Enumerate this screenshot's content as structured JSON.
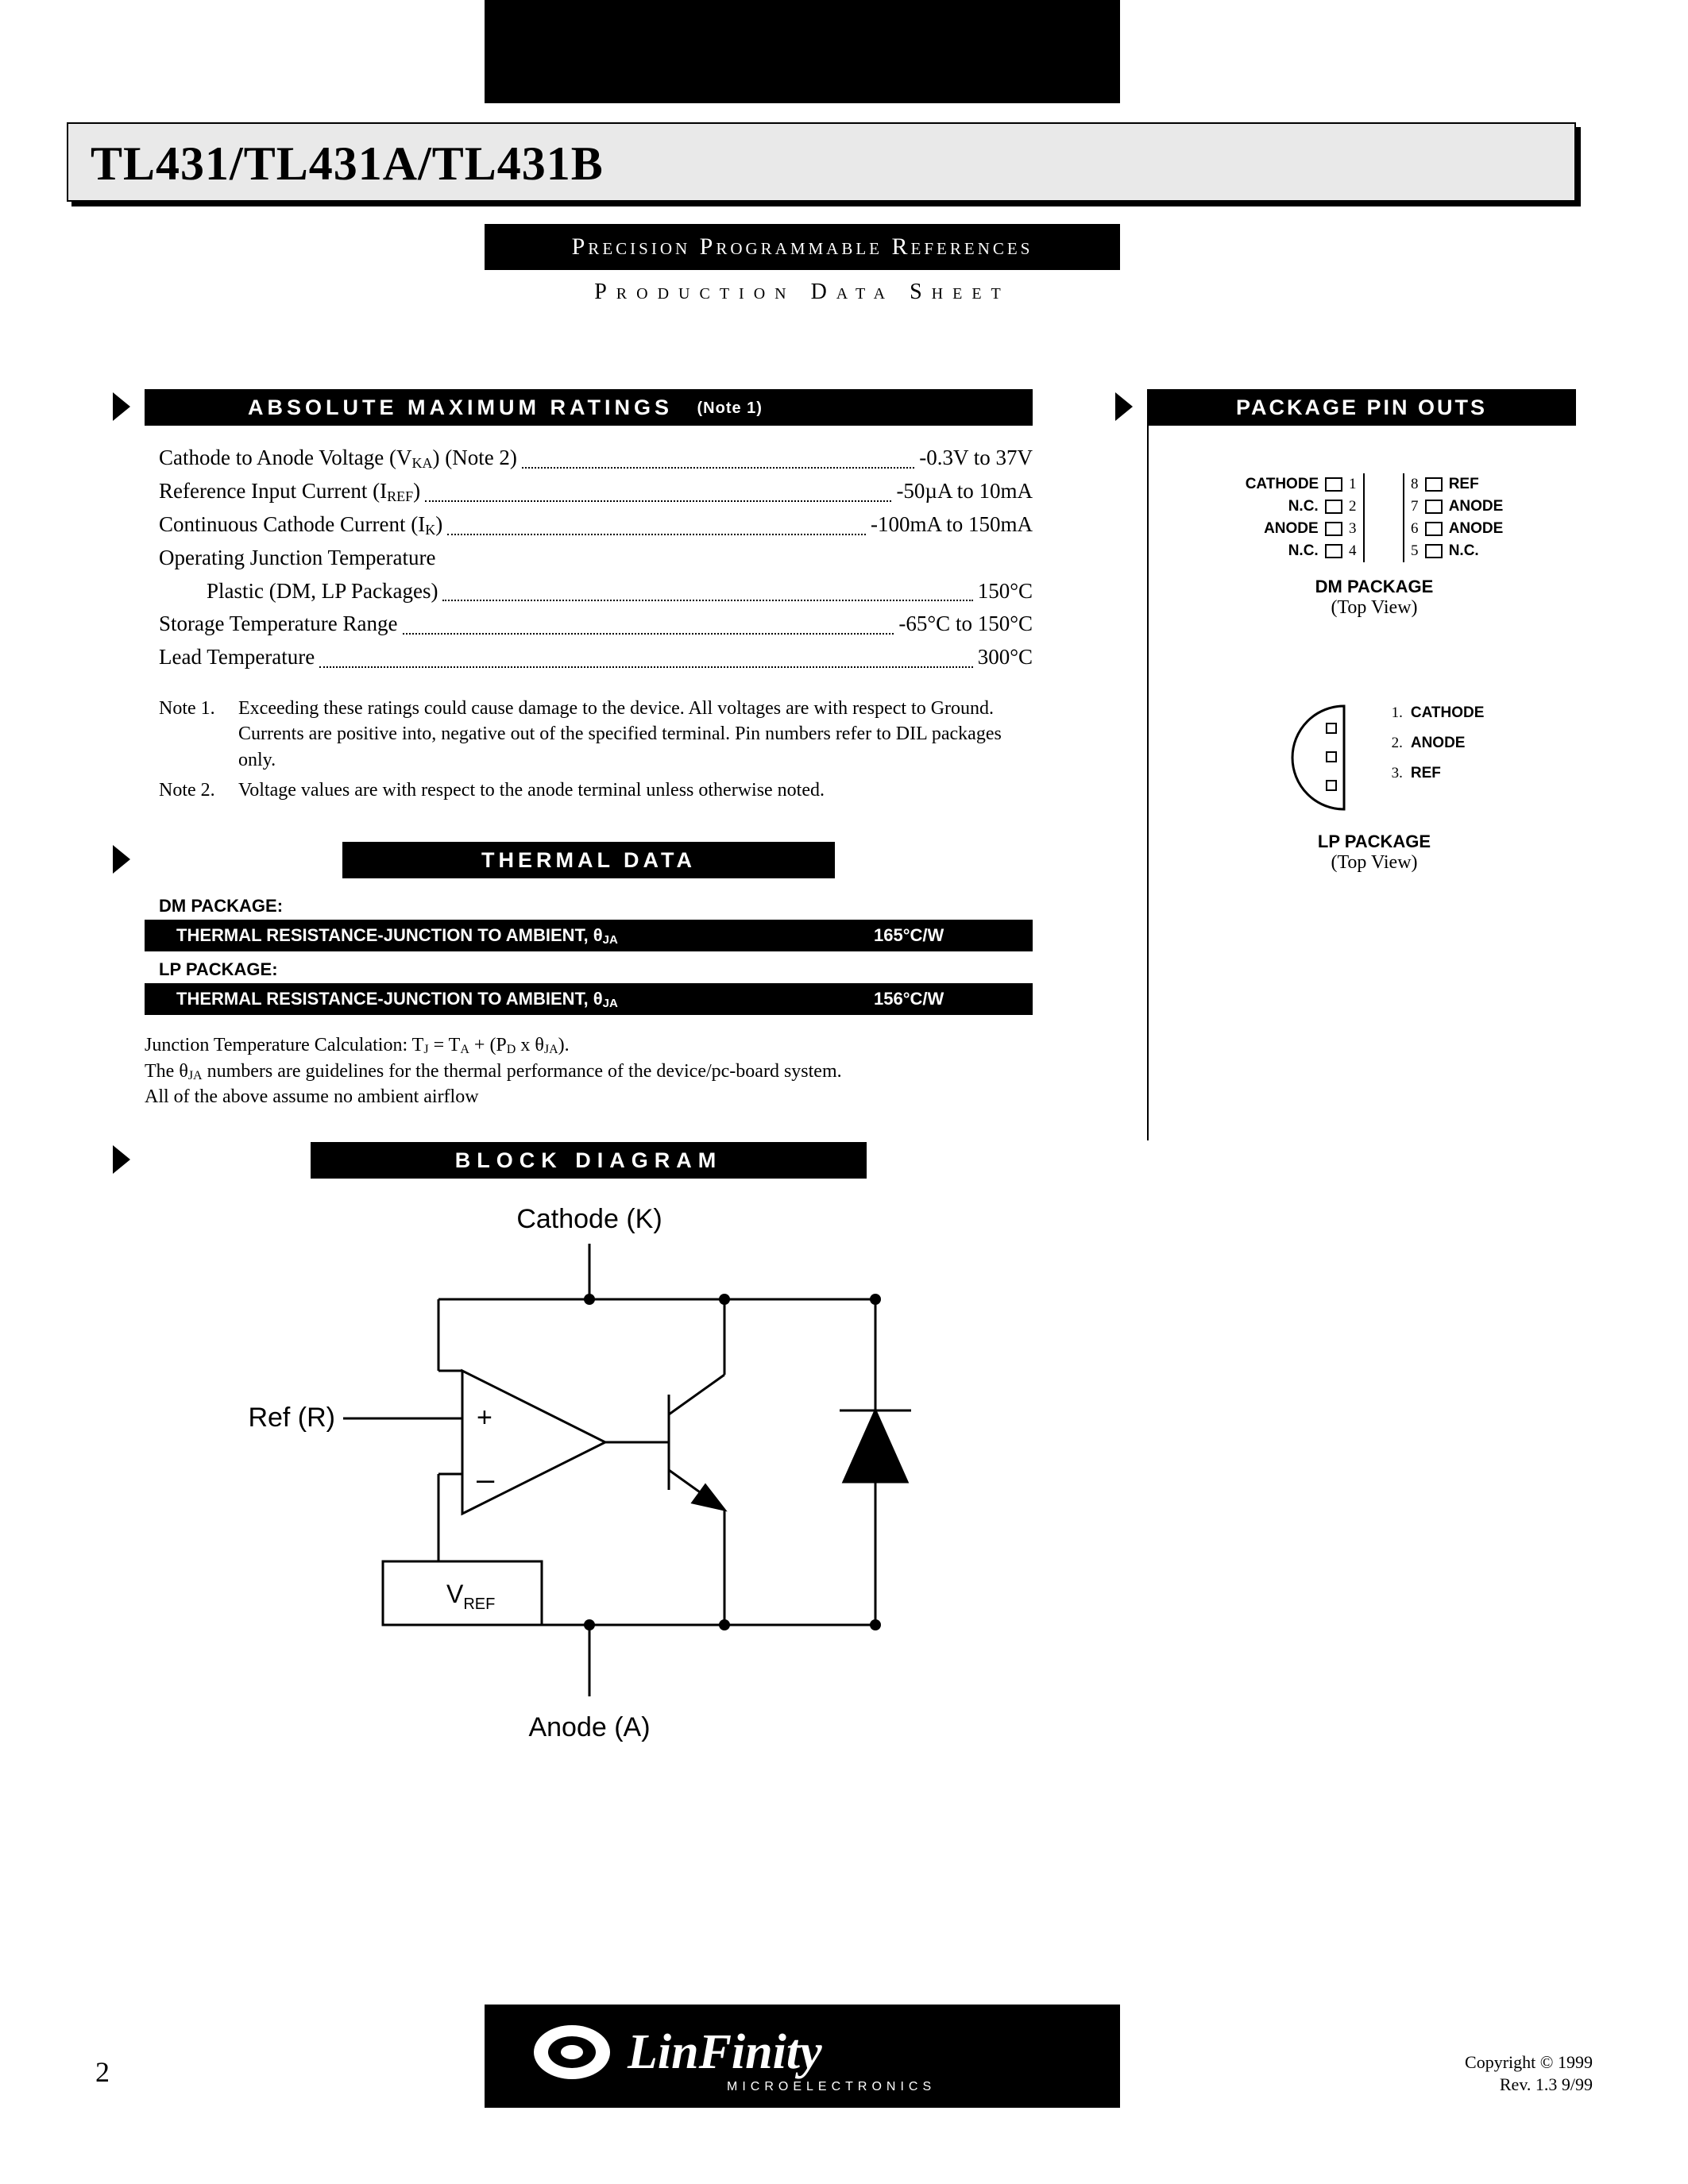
{
  "header": {
    "title": "TL431/TL431A/TL431B",
    "subtitle1": "Precision Programmable References",
    "subtitle2": "Production Data Sheet"
  },
  "absMax": {
    "heading": "ABSOLUTE MAXIMUM RATINGS",
    "headingNote": "(Note 1)",
    "rows": [
      {
        "label": "Cathode to Anode Voltage (V",
        "sub": "KA",
        "label2": ") (Note 2)",
        "value": "-0.3V to 37V"
      },
      {
        "label": "Reference Input Current (I",
        "sub": "REF",
        "label2": ")",
        "value": "-50µA to 10mA"
      },
      {
        "label": "Continuous Cathode Current (I",
        "sub": "K",
        "label2": ")",
        "value": "-100mA to 150mA"
      },
      {
        "label": "Operating Junction Temperature",
        "sub": "",
        "label2": "",
        "value": ""
      },
      {
        "indent": true,
        "label": "Plastic (DM, LP Packages)",
        "sub": "",
        "label2": "",
        "value": "150°C"
      },
      {
        "label": "Storage Temperature Range",
        "sub": "",
        "label2": "",
        "value": "-65°C to 150°C"
      },
      {
        "label": "Lead Temperature",
        "sub": "",
        "label2": "",
        "value": "300°C"
      }
    ],
    "notes": [
      {
        "n": "Note 1.",
        "t": "Exceeding these ratings could cause damage to the device. All voltages are with respect to Ground.  Currents are positive into, negative out of the specified terminal. Pin numbers refer to DIL packages only."
      },
      {
        "n": "Note 2.",
        "t": "Voltage values are with respect to the anode terminal unless otherwise noted."
      }
    ]
  },
  "thermal": {
    "heading": "THERMAL DATA",
    "groups": [
      {
        "pkg": "DM PACKAGE:",
        "param": "THERMAL RESISTANCE-JUNCTION TO AMBIENT, θ",
        "sub": "JA",
        "val": "165°C/W"
      },
      {
        "pkg": "LP PACKAGE:",
        "param": "THERMAL RESISTANCE-JUNCTION TO AMBIENT, θ",
        "sub": "JA",
        "val": "156°C/W"
      }
    ],
    "footer": [
      "Junction Temperature Calculation:   T|J| = T|A| + (P|D| x θ|JA|).",
      "The θ|JA| numbers are guidelines for the thermal performance of the device/pc-board system.",
      "All of the above assume no ambient airflow"
    ]
  },
  "blockDiagram": {
    "heading": "BLOCK DIAGRAM",
    "labels": {
      "cathode": "Cathode (K)",
      "ref": "Ref (R)",
      "anode": "Anode (A)",
      "vref": "V",
      "vrefSub": "REF"
    },
    "style": {
      "stroke": "#000",
      "strokeWidth": 3,
      "fill": "#fff"
    }
  },
  "pinouts": {
    "heading": "PACKAGE PIN OUTS",
    "dm": {
      "caption": "DM PACKAGE",
      "sub": "(Top View)",
      "left": [
        {
          "n": "1",
          "l": "CATHODE"
        },
        {
          "n": "2",
          "l": "N.C."
        },
        {
          "n": "3",
          "l": "ANODE"
        },
        {
          "n": "4",
          "l": "N.C."
        }
      ],
      "right": [
        {
          "n": "8",
          "l": "REF"
        },
        {
          "n": "7",
          "l": "ANODE"
        },
        {
          "n": "6",
          "l": "ANODE"
        },
        {
          "n": "5",
          "l": "N.C."
        }
      ]
    },
    "lp": {
      "caption": "LP PACKAGE",
      "sub": "(Top View)",
      "pins": [
        {
          "n": "1.",
          "l": "CATHODE"
        },
        {
          "n": "2.",
          "l": "ANODE"
        },
        {
          "n": "3.",
          "l": "REF"
        }
      ]
    }
  },
  "footer": {
    "logo": "LinFinity",
    "logoSub": "MICROELECTRONICS",
    "page": "2",
    "copyright1": "Copyright © 1999",
    "copyright2": "Rev. 1.3   9/99"
  }
}
